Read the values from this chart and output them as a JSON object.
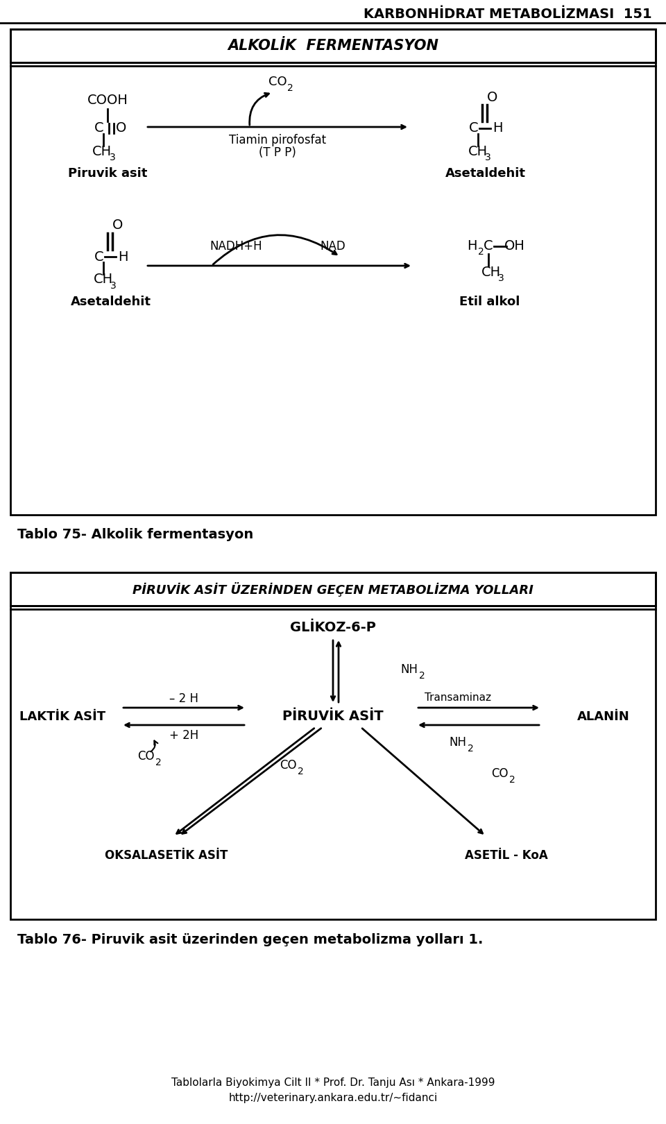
{
  "page_title": "KARBONHİDRAT METABOLİZMASI  151",
  "box1_title": "ALKOLİK  FERMENTASYON",
  "box2_title": "PİRUVİK ASİT ÜZERİNDEN GEÇEN METABOLİZMA YOLLARI",
  "caption1": "Tablo 75- Alkolik fermentasyon",
  "caption2": "Tablo 76- Piruvik asit üzerinden geçen metabolizma yolları 1.",
  "footer1": "Tablolarla Biyokimya Cilt II * Prof. Dr. Tanju Ası * Ankara-1999",
  "footer2": "http://veterinary.ankara.edu.tr/~fidanci",
  "bg_color": "#ffffff",
  "text_color": "#000000"
}
